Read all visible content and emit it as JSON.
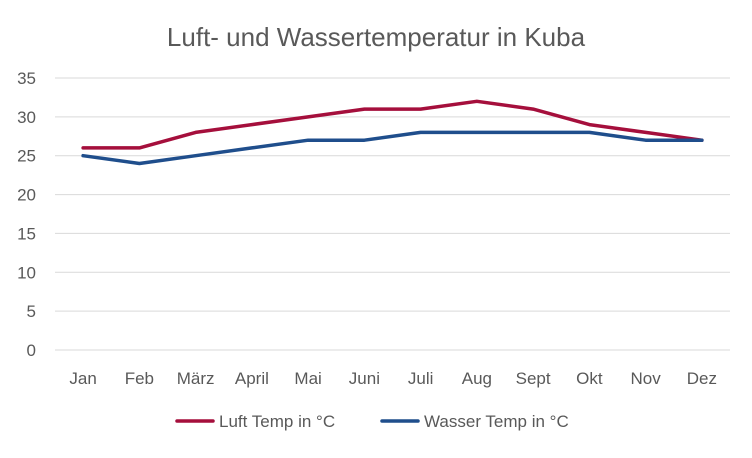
{
  "chart_data": {
    "type": "line",
    "title": "Luft- und Wassertemperatur in Kuba",
    "xlabel": "",
    "ylabel": "",
    "categories": [
      "Jan",
      "Feb",
      "März",
      "April",
      "Mai",
      "Juni",
      "Juli",
      "Aug",
      "Sept",
      "Okt",
      "Nov",
      "Dez"
    ],
    "ylim": [
      0,
      35
    ],
    "yticks": [
      0,
      5,
      10,
      15,
      20,
      25,
      30,
      35
    ],
    "grid": true,
    "legend": "bottom",
    "series": [
      {
        "name": "Luft Temp in °C",
        "color": "#A50F3C",
        "values": [
          26,
          26,
          28,
          29,
          30,
          31,
          31,
          32,
          31,
          29,
          28,
          27
        ]
      },
      {
        "name": "Wasser Temp in °C",
        "color": "#1F4E8C",
        "values": [
          25,
          24,
          25,
          26,
          27,
          27,
          28,
          28,
          28,
          28,
          27,
          27
        ]
      }
    ]
  }
}
